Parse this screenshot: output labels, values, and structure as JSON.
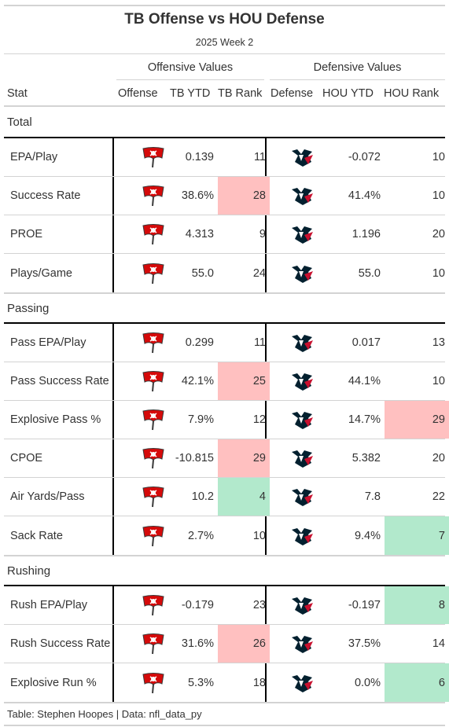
{
  "title": "TB Offense vs HOU Defense",
  "subtitle": "2025 Week 2",
  "spanners": {
    "offense": "Offensive Values",
    "defense": "Defensive Values"
  },
  "columns": [
    "Stat",
    "Offense",
    "TB YTD",
    "TB Rank",
    "Defense",
    "HOU YTD",
    "HOU Rank"
  ],
  "colors": {
    "bad": "#ffc0c0",
    "good": "#b2e9cc",
    "bucs_red": "#d50a0a",
    "texans_navy": "#03202f",
    "texans_red": "#c8102e"
  },
  "logos": {
    "offense": "buccaneers-flag-logo",
    "defense": "texans-bull-logo"
  },
  "groups": [
    {
      "label": "Total",
      "rows": [
        {
          "stat": "EPA/Play",
          "tb_ytd": "0.139",
          "tb_rank": "11",
          "tb_rank_color": "",
          "hou_ytd": "-0.072",
          "hou_rank": "10",
          "hou_rank_color": ""
        },
        {
          "stat": "Success Rate",
          "tb_ytd": "38.6%",
          "tb_rank": "28",
          "tb_rank_color": "bad",
          "hou_ytd": "41.4%",
          "hou_rank": "10",
          "hou_rank_color": ""
        },
        {
          "stat": "PROE",
          "tb_ytd": "4.313",
          "tb_rank": "9",
          "tb_rank_color": "",
          "hou_ytd": "1.196",
          "hou_rank": "20",
          "hou_rank_color": ""
        },
        {
          "stat": "Plays/Game",
          "tb_ytd": "55.0",
          "tb_rank": "24",
          "tb_rank_color": "",
          "hou_ytd": "55.0",
          "hou_rank": "10",
          "hou_rank_color": ""
        }
      ]
    },
    {
      "label": "Passing",
      "rows": [
        {
          "stat": "Pass EPA/Play",
          "tb_ytd": "0.299",
          "tb_rank": "11",
          "tb_rank_color": "",
          "hou_ytd": "0.017",
          "hou_rank": "13",
          "hou_rank_color": ""
        },
        {
          "stat": "Pass Success Rate",
          "tb_ytd": "42.1%",
          "tb_rank": "25",
          "tb_rank_color": "bad",
          "hou_ytd": "44.1%",
          "hou_rank": "10",
          "hou_rank_color": ""
        },
        {
          "stat": "Explosive Pass %",
          "tb_ytd": "7.9%",
          "tb_rank": "12",
          "tb_rank_color": "",
          "hou_ytd": "14.7%",
          "hou_rank": "29",
          "hou_rank_color": "bad"
        },
        {
          "stat": "CPOE",
          "tb_ytd": "-10.815",
          "tb_rank": "29",
          "tb_rank_color": "bad",
          "hou_ytd": "5.382",
          "hou_rank": "20",
          "hou_rank_color": ""
        },
        {
          "stat": "Air Yards/Pass",
          "tb_ytd": "10.2",
          "tb_rank": "4",
          "tb_rank_color": "good",
          "hou_ytd": "7.8",
          "hou_rank": "22",
          "hou_rank_color": ""
        },
        {
          "stat": "Sack Rate",
          "tb_ytd": "2.7%",
          "tb_rank": "10",
          "tb_rank_color": "",
          "hou_ytd": "9.4%",
          "hou_rank": "7",
          "hou_rank_color": "good"
        }
      ]
    },
    {
      "label": "Rushing",
      "rows": [
        {
          "stat": "Rush EPA/Play",
          "tb_ytd": "-0.179",
          "tb_rank": "23",
          "tb_rank_color": "",
          "hou_ytd": "-0.197",
          "hou_rank": "8",
          "hou_rank_color": "good"
        },
        {
          "stat": "Rush Success Rate",
          "tb_ytd": "31.6%",
          "tb_rank": "26",
          "tb_rank_color": "bad",
          "hou_ytd": "37.5%",
          "hou_rank": "14",
          "hou_rank_color": ""
        },
        {
          "stat": "Explosive Run %",
          "tb_ytd": "5.3%",
          "tb_rank": "18",
          "tb_rank_color": "",
          "hou_ytd": "0.0%",
          "hou_rank": "6",
          "hou_rank_color": "good"
        }
      ]
    }
  ],
  "footer": "Table: Stephen Hoopes | Data: nfl_data_py"
}
